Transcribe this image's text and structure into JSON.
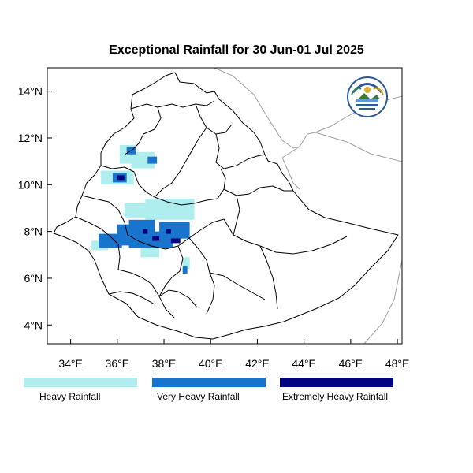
{
  "map": {
    "title": "Exceptional Rainfall for 30 Jun-01 Jul 2025",
    "lon_range": [
      33.0,
      48.2
    ],
    "lat_range": [
      3.2,
      15.0
    ],
    "lon_ticks": [
      {
        "value": 34,
        "label": "34°E"
      },
      {
        "value": 36,
        "label": "36°E"
      },
      {
        "value": 38,
        "label": "38°E"
      },
      {
        "value": 40,
        "label": "40°E"
      },
      {
        "value": 42,
        "label": "42°E"
      },
      {
        "value": 44,
        "label": "44°E"
      },
      {
        "value": 46,
        "label": "46°E"
      },
      {
        "value": 48,
        "label": "48°E"
      }
    ],
    "lat_ticks": [
      {
        "value": 4,
        "label": "4°N"
      },
      {
        "value": 6,
        "label": "6°N"
      },
      {
        "value": 8,
        "label": "8°N"
      },
      {
        "value": 10,
        "label": "10°N"
      },
      {
        "value": 12,
        "label": "12°N"
      },
      {
        "value": 14,
        "label": "14°N"
      }
    ],
    "colors": {
      "heavy": "#aeeeee",
      "very_heavy": "#1874cd",
      "extremely_heavy": "#000080",
      "country_border": "#000000",
      "neighbor_border": "#a0a0a0"
    },
    "rain_areas": [
      {
        "category": "heavy",
        "lon": [
          35.3,
          36.7
        ],
        "lat": [
          10.0,
          10.6
        ]
      },
      {
        "category": "heavy",
        "lon": [
          36.1,
          36.8
        ],
        "lat": [
          10.9,
          11.7
        ]
      },
      {
        "category": "heavy",
        "lon": [
          36.6,
          37.6
        ],
        "lat": [
          10.7,
          11.4
        ]
      },
      {
        "category": "heavy",
        "lon": [
          37.2,
          39.3
        ],
        "lat": [
          8.5,
          9.4
        ]
      },
      {
        "category": "heavy",
        "lon": [
          36.3,
          37.5
        ],
        "lat": [
          8.6,
          9.2
        ]
      },
      {
        "category": "heavy",
        "lon": [
          34.9,
          35.6
        ],
        "lat": [
          7.2,
          7.6
        ]
      },
      {
        "category": "heavy",
        "lon": [
          37.0,
          37.8
        ],
        "lat": [
          6.9,
          7.3
        ]
      },
      {
        "category": "heavy",
        "lon": [
          38.8,
          39.1
        ],
        "lat": [
          6.4,
          6.9
        ]
      },
      {
        "category": "very_heavy",
        "lon": [
          36.4,
          36.8
        ],
        "lat": [
          11.3,
          11.6
        ]
      },
      {
        "category": "very_heavy",
        "lon": [
          35.8,
          36.4
        ],
        "lat": [
          10.1,
          10.5
        ]
      },
      {
        "category": "very_heavy",
        "lon": [
          37.3,
          37.7
        ],
        "lat": [
          10.9,
          11.2
        ]
      },
      {
        "category": "very_heavy",
        "lon": [
          35.2,
          36.2
        ],
        "lat": [
          7.3,
          7.9
        ]
      },
      {
        "category": "very_heavy",
        "lon": [
          36.0,
          36.9
        ],
        "lat": [
          7.4,
          8.3
        ]
      },
      {
        "category": "very_heavy",
        "lon": [
          36.5,
          37.6
        ],
        "lat": [
          7.3,
          8.5
        ]
      },
      {
        "category": "very_heavy",
        "lon": [
          37.2,
          38.4
        ],
        "lat": [
          7.3,
          8.0
        ]
      },
      {
        "category": "very_heavy",
        "lon": [
          37.8,
          39.1
        ],
        "lat": [
          7.7,
          8.4
        ]
      },
      {
        "category": "very_heavy",
        "lon": [
          38.8,
          39.0
        ],
        "lat": [
          6.2,
          6.5
        ]
      },
      {
        "category": "extremely_heavy",
        "lon": [
          36.0,
          36.3
        ],
        "lat": [
          10.2,
          10.4
        ]
      },
      {
        "category": "extremely_heavy",
        "lon": [
          37.1,
          37.3
        ],
        "lat": [
          7.9,
          8.1
        ]
      },
      {
        "category": "extremely_heavy",
        "lon": [
          37.5,
          37.8
        ],
        "lat": [
          7.6,
          7.8
        ]
      },
      {
        "category": "extremely_heavy",
        "lon": [
          38.3,
          38.7
        ],
        "lat": [
          7.5,
          7.7
        ]
      },
      {
        "category": "extremely_heavy",
        "lon": [
          38.1,
          38.3
        ],
        "lat": [
          7.9,
          8.1
        ]
      }
    ]
  },
  "legend": {
    "items": [
      {
        "label": "Heavy Rainfall",
        "color": "#aeeeee"
      },
      {
        "label": "Very Heavy Rainfall",
        "color": "#1874cd"
      },
      {
        "label": "Extremely Heavy Rainfall",
        "color": "#000080"
      }
    ]
  },
  "logo": {
    "name": "ethiopian-meteorology-institute-logo"
  }
}
